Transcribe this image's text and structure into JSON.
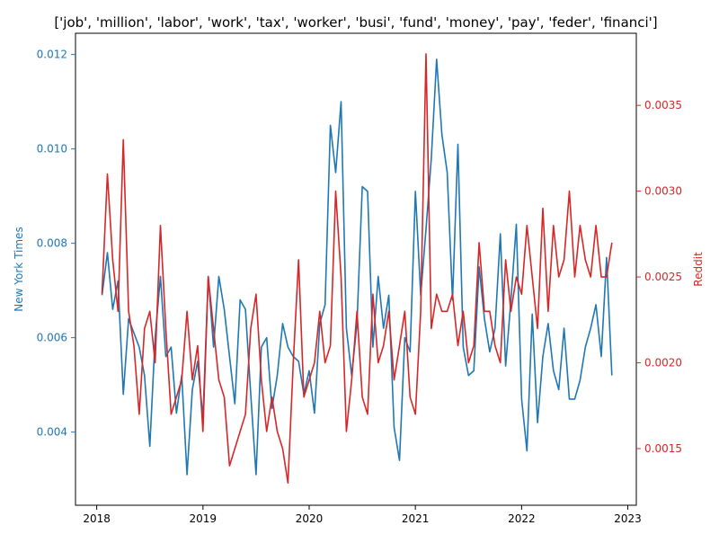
{
  "chart_data": {
    "type": "line",
    "title": "['job', 'million', 'labor', 'work', 'tax', 'worker', 'busi', 'fund', 'money', 'pay', 'feder', 'financi']",
    "xlabel": "",
    "x_ticks": [
      "2018",
      "2019",
      "2020",
      "2021",
      "2022",
      "2023"
    ],
    "xlim": [
      2017.8,
      2023.08
    ],
    "grid": false,
    "legend": "none",
    "left_axis": {
      "label": "New York Times",
      "color": "#1f77b4",
      "ylim": [
        0.00245,
        0.01245
      ],
      "ticks": [
        "0.004",
        "0.006",
        "0.008",
        "0.010",
        "0.012"
      ]
    },
    "right_axis": {
      "label": "Reddit",
      "color": "#d62728",
      "ylim": [
        0.00117,
        0.00392
      ],
      "ticks": [
        "0.0015",
        "0.0020",
        "0.0025",
        "0.0030",
        "0.0035"
      ]
    },
    "series": [
      {
        "axis": "left",
        "color": "#1f77b4",
        "x": [
          2018.05,
          2018.1,
          2018.15,
          2018.2,
          2018.25,
          2018.3,
          2018.35,
          2018.4,
          2018.45,
          2018.5,
          2018.55,
          2018.6,
          2018.65,
          2018.7,
          2018.75,
          2018.8,
          2018.85,
          2018.9,
          2018.95,
          2019.0,
          2019.05,
          2019.1,
          2019.15,
          2019.2,
          2019.25,
          2019.3,
          2019.35,
          2019.4,
          2019.45,
          2019.5,
          2019.55,
          2019.6,
          2019.65,
          2019.7,
          2019.75,
          2019.8,
          2019.85,
          2019.9,
          2019.95,
          2020.0,
          2020.05,
          2020.1,
          2020.15,
          2020.2,
          2020.25,
          2020.3,
          2020.35,
          2020.4,
          2020.45,
          2020.5,
          2020.55,
          2020.6,
          2020.65,
          2020.7,
          2020.75,
          2020.8,
          2020.85,
          2020.9,
          2020.95,
          2021.0,
          2021.05,
          2021.1,
          2021.15,
          2021.2,
          2021.25,
          2021.3,
          2021.35,
          2021.4,
          2021.45,
          2021.5,
          2021.55,
          2021.6,
          2021.65,
          2021.7,
          2021.75,
          2021.8,
          2021.85,
          2021.9,
          2021.95,
          2022.0,
          2022.05,
          2022.1,
          2022.15,
          2022.2,
          2022.25,
          2022.3,
          2022.35,
          2022.4,
          2022.45,
          2022.5,
          2022.55,
          2022.6,
          2022.65,
          2022.7,
          2022.75,
          2022.8,
          2022.85
        ],
        "y": [
          0.0069,
          0.0078,
          0.0066,
          0.0072,
          0.0048,
          0.0064,
          0.0061,
          0.0058,
          0.0052,
          0.0037,
          0.006,
          0.0073,
          0.0056,
          0.0058,
          0.0044,
          0.0052,
          0.0031,
          0.0049,
          0.0055,
          0.0043,
          0.0073,
          0.0058,
          0.0073,
          0.0066,
          0.0056,
          0.0046,
          0.0068,
          0.0066,
          0.0048,
          0.0031,
          0.0058,
          0.006,
          0.0045,
          0.0052,
          0.0063,
          0.0058,
          0.0056,
          0.0055,
          0.0048,
          0.0053,
          0.0044,
          0.0063,
          0.0067,
          0.0105,
          0.0095,
          0.011,
          0.0062,
          0.0052,
          0.0063,
          0.0092,
          0.0091,
          0.0058,
          0.0073,
          0.0062,
          0.0069,
          0.0041,
          0.0034,
          0.006,
          0.0057,
          0.0091,
          0.0069,
          0.0083,
          0.0098,
          0.0119,
          0.0103,
          0.0095,
          0.0068,
          0.0101,
          0.0058,
          0.0052,
          0.0053,
          0.0075,
          0.0064,
          0.0057,
          0.0062,
          0.0082,
          0.0054,
          0.0068,
          0.0084,
          0.0047,
          0.0036,
          0.0065,
          0.0042,
          0.0056,
          0.0063,
          0.0053,
          0.0049,
          0.0062,
          0.0047,
          0.0047,
          0.0051,
          0.0058,
          0.0062,
          0.0067,
          0.0056,
          0.0077,
          0.0052
        ]
      },
      {
        "axis": "right",
        "color": "#d62728",
        "x": [
          2018.05,
          2018.1,
          2018.15,
          2018.2,
          2018.25,
          2018.3,
          2018.35,
          2018.4,
          2018.45,
          2018.5,
          2018.55,
          2018.6,
          2018.65,
          2018.7,
          2018.75,
          2018.8,
          2018.85,
          2018.9,
          2018.95,
          2019.0,
          2019.05,
          2019.1,
          2019.15,
          2019.2,
          2019.25,
          2019.3,
          2019.35,
          2019.4,
          2019.45,
          2019.5,
          2019.55,
          2019.6,
          2019.65,
          2019.7,
          2019.75,
          2019.8,
          2019.85,
          2019.9,
          2019.95,
          2020.0,
          2020.05,
          2020.1,
          2020.15,
          2020.2,
          2020.25,
          2020.3,
          2020.35,
          2020.4,
          2020.45,
          2020.5,
          2020.55,
          2020.6,
          2020.65,
          2020.7,
          2020.75,
          2020.8,
          2020.85,
          2020.9,
          2020.95,
          2021.0,
          2021.05,
          2021.1,
          2021.15,
          2021.2,
          2021.25,
          2021.3,
          2021.35,
          2021.4,
          2021.45,
          2021.5,
          2021.55,
          2021.6,
          2021.65,
          2021.7,
          2021.75,
          2021.8,
          2021.85,
          2021.9,
          2021.95,
          2022.0,
          2022.05,
          2022.1,
          2022.15,
          2022.2,
          2022.25,
          2022.3,
          2022.35,
          2022.4,
          2022.45,
          2022.5,
          2022.55,
          2022.6,
          2022.65,
          2022.7,
          2022.75,
          2022.8,
          2022.85
        ],
        "y": [
          0.0024,
          0.0031,
          0.0026,
          0.0023,
          0.0033,
          0.0023,
          0.0021,
          0.0017,
          0.0022,
          0.0023,
          0.002,
          0.0028,
          0.0022,
          0.0017,
          0.0018,
          0.0019,
          0.0023,
          0.0019,
          0.0021,
          0.0016,
          0.0025,
          0.0022,
          0.0019,
          0.0018,
          0.0014,
          0.0015,
          0.0016,
          0.0017,
          0.0022,
          0.0024,
          0.0019,
          0.0016,
          0.0018,
          0.0016,
          0.0015,
          0.0013,
          0.002,
          0.0026,
          0.0018,
          0.0019,
          0.002,
          0.0023,
          0.002,
          0.0021,
          0.003,
          0.0025,
          0.0016,
          0.0019,
          0.0023,
          0.0018,
          0.0017,
          0.0024,
          0.002,
          0.0021,
          0.0023,
          0.0019,
          0.0021,
          0.0023,
          0.0018,
          0.0017,
          0.0023,
          0.0038,
          0.0022,
          0.0024,
          0.0023,
          0.0023,
          0.0024,
          0.0021,
          0.0023,
          0.002,
          0.0021,
          0.0027,
          0.0023,
          0.0023,
          0.0021,
          0.002,
          0.0026,
          0.0023,
          0.0025,
          0.0024,
          0.0028,
          0.0025,
          0.0022,
          0.0029,
          0.0023,
          0.0028,
          0.0025,
          0.0026,
          0.003,
          0.0025,
          0.0028,
          0.0026,
          0.0025,
          0.0028,
          0.0025,
          0.0025,
          0.0027
        ]
      }
    ]
  }
}
